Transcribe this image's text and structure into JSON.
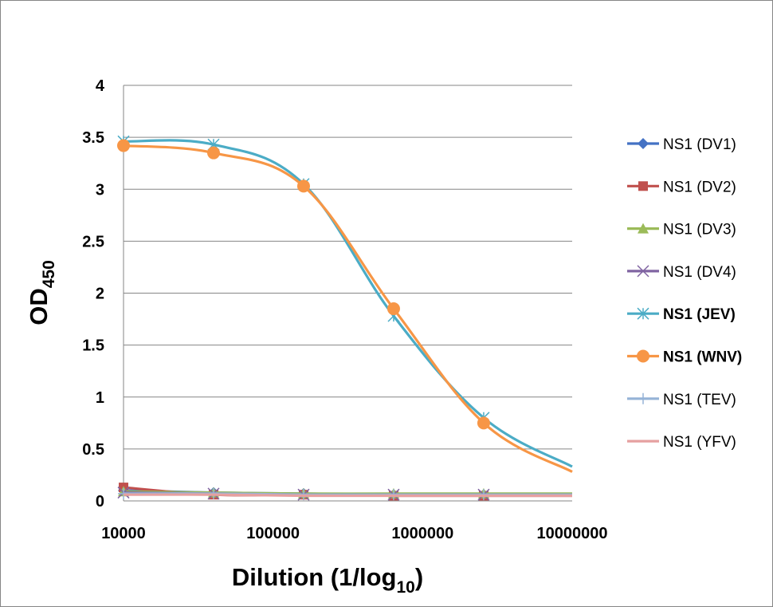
{
  "chart_data": {
    "type": "line",
    "x_scale": "log",
    "x": [
      10000,
      40000,
      160000,
      640000,
      2560000,
      10240000
    ],
    "xlim": [
      10000,
      10000000
    ],
    "ylim": [
      0,
      4
    ],
    "xticks": [
      "10000",
      "100000",
      "1000000",
      "10000000"
    ],
    "yticks": [
      "0",
      "0.5",
      "1",
      "1.5",
      "2",
      "2.5",
      "3",
      "3.5",
      "4"
    ],
    "xlabel": {
      "main": "Dilution (1/log",
      "sub": "10",
      "end": ")"
    },
    "ylabel": {
      "main": "OD",
      "sub": "450"
    },
    "grid": "horizontal",
    "legend_position": "right",
    "series": [
      {
        "name": "NS1 (DV1)",
        "color": "#4472C4",
        "marker": "diamond",
        "bold": false,
        "values": [
          0.1,
          0.08,
          0.07,
          0.06,
          0.06,
          0.06
        ]
      },
      {
        "name": "NS1 (DV2)",
        "color": "#C0504D",
        "marker": "square",
        "bold": false,
        "values": [
          0.13,
          0.06,
          0.06,
          0.05,
          0.05,
          0.05
        ]
      },
      {
        "name": "NS1 (DV3)",
        "color": "#9BBB59",
        "marker": "triangle",
        "bold": false,
        "values": [
          0.09,
          0.08,
          0.07,
          0.07,
          0.07,
          0.07
        ]
      },
      {
        "name": "NS1 (DV4)",
        "color": "#8064A2",
        "marker": "x",
        "bold": false,
        "values": [
          0.08,
          0.07,
          0.06,
          0.06,
          0.06,
          0.06
        ]
      },
      {
        "name": "NS1 (JEV)",
        "color": "#4BACC6",
        "marker": "star",
        "bold": true,
        "values": [
          3.46,
          3.43,
          3.05,
          1.78,
          0.8,
          0.33
        ]
      },
      {
        "name": "NS1 (WNV)",
        "color": "#F79646",
        "marker": "circle",
        "bold": true,
        "values": [
          3.42,
          3.35,
          3.03,
          1.85,
          0.75,
          0.28
        ]
      },
      {
        "name": "NS1 (TEV)",
        "color": "#95B3D7",
        "marker": "plus",
        "bold": false,
        "values": [
          0.07,
          0.07,
          0.06,
          0.06,
          0.06,
          0.06
        ]
      },
      {
        "name": "NS1 (YFV)",
        "color": "#E6A0A0",
        "marker": "none",
        "bold": false,
        "values": [
          0.06,
          0.06,
          0.05,
          0.05,
          0.05,
          0.05
        ]
      }
    ]
  }
}
